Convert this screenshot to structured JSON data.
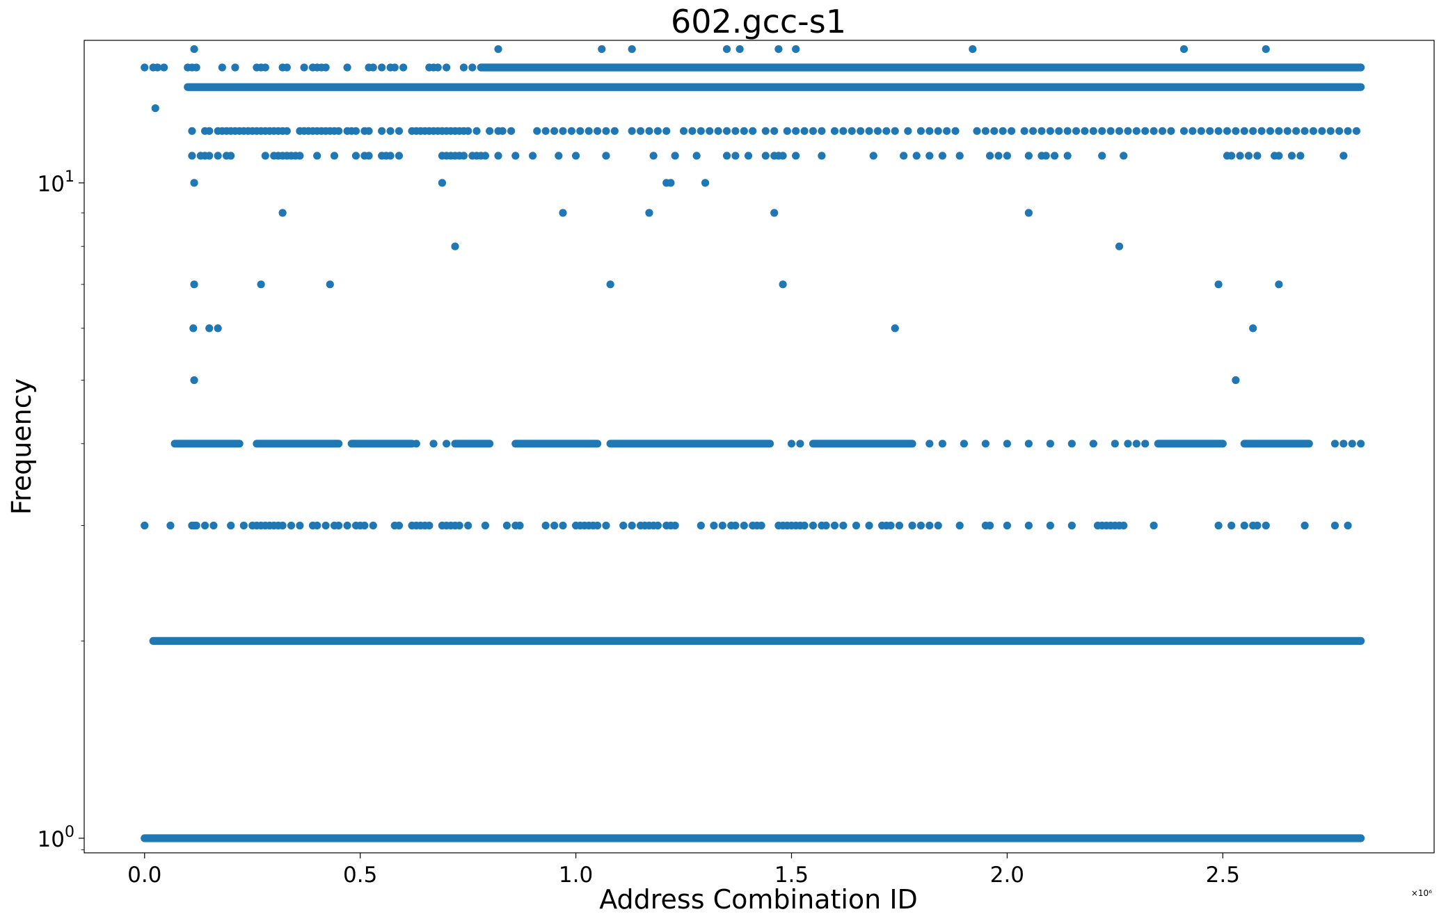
{
  "chart_data": {
    "type": "scatter",
    "title": "602.gcc-s1",
    "xlabel": "Address Combination ID",
    "ylabel": "Frequency",
    "x_offset_label": "×10⁶",
    "xscale": "linear",
    "yscale": "log",
    "xlim": [
      -0.14,
      2.99
    ],
    "ylim": [
      0.95,
      16.5
    ],
    "x_ticks": [
      0.0,
      0.5,
      1.0,
      1.5,
      2.0,
      2.5
    ],
    "x_tick_labels": [
      "0.0",
      "0.5",
      "1.0",
      "1.5",
      "2.0",
      "2.5"
    ],
    "y_ticks": [
      1,
      10
    ],
    "y_tick_labels": [
      {
        "base": "10",
        "exp": "0"
      },
      {
        "base": "10",
        "exp": "1"
      }
    ],
    "marker_color": "#1f77b4",
    "series": [
      {
        "name": "freq_1_dense",
        "y": 1,
        "dense_segments": [
          [
            0.0,
            2.82
          ]
        ]
      },
      {
        "name": "freq_2_dense",
        "y": 2,
        "dense_segments": [
          [
            0.02,
            2.82
          ]
        ]
      },
      {
        "name": "freq_14_dense",
        "y": 14,
        "dense_segments": [
          [
            0.1,
            2.82
          ]
        ]
      },
      {
        "name": "freq_15_dense",
        "y": 15,
        "dense_segments": [
          [
            0.78,
            2.82
          ]
        ],
        "x": [
          0.0,
          0.02,
          0.03,
          0.045,
          0.1,
          0.11,
          0.12,
          0.18,
          0.21,
          0.26,
          0.27,
          0.28,
          0.32,
          0.33,
          0.37,
          0.39,
          0.4,
          0.41,
          0.42,
          0.47,
          0.52,
          0.53,
          0.55,
          0.57,
          0.58,
          0.6,
          0.66,
          0.67,
          0.68,
          0.7,
          0.74,
          0.76
        ]
      },
      {
        "name": "freq_3",
        "y": 3,
        "x": [
          0.0,
          0.06,
          0.11,
          0.115,
          0.12,
          0.14,
          0.16,
          0.2,
          0.23,
          0.25,
          0.26,
          0.27,
          0.28,
          0.29,
          0.3,
          0.31,
          0.32,
          0.34,
          0.36,
          0.39,
          0.4,
          0.42,
          0.44,
          0.45,
          0.47,
          0.49,
          0.5,
          0.51,
          0.53,
          0.58,
          0.59,
          0.62,
          0.63,
          0.64,
          0.65,
          0.66,
          0.69,
          0.7,
          0.71,
          0.72,
          0.73,
          0.75,
          0.79,
          0.84,
          0.86,
          0.87,
          0.93,
          0.95,
          0.97,
          1.0,
          1.01,
          1.02,
          1.03,
          1.04,
          1.05,
          1.07,
          1.11,
          1.13,
          1.15,
          1.16,
          1.17,
          1.18,
          1.19,
          1.21,
          1.22,
          1.23,
          1.29,
          1.32,
          1.34,
          1.36,
          1.37,
          1.39,
          1.41,
          1.42,
          1.43,
          1.47,
          1.48,
          1.49,
          1.5,
          1.51,
          1.52,
          1.53,
          1.55,
          1.57,
          1.58,
          1.6,
          1.62,
          1.65,
          1.68,
          1.71,
          1.72,
          1.73,
          1.75,
          1.78,
          1.8,
          1.82,
          1.84,
          1.89,
          1.95,
          1.96,
          2.0,
          2.05,
          2.1,
          2.15,
          2.21,
          2.22,
          2.23,
          2.24,
          2.25,
          2.26,
          2.27,
          2.34,
          2.49,
          2.52,
          2.55,
          2.57,
          2.58,
          2.6,
          2.69,
          2.76,
          2.79
        ]
      },
      {
        "name": "freq_4_dense",
        "y": 4,
        "dense_segments": [
          [
            0.07,
            0.22
          ],
          [
            0.26,
            0.45
          ],
          [
            0.48,
            0.62
          ],
          [
            0.72,
            0.8
          ],
          [
            0.86,
            1.05
          ],
          [
            1.08,
            1.45
          ],
          [
            1.55,
            1.78
          ],
          [
            2.35,
            2.5
          ],
          [
            2.55,
            2.7
          ]
        ],
        "x": [
          0.63,
          0.67,
          0.7,
          1.5,
          1.52,
          1.82,
          1.85,
          1.9,
          1.95,
          2.0,
          2.05,
          2.1,
          2.15,
          2.2,
          2.25,
          2.28,
          2.3,
          2.32,
          2.76,
          2.78,
          2.8,
          2.82
        ]
      },
      {
        "name": "freq_11",
        "y": 11,
        "x": [
          0.11,
          0.13,
          0.14,
          0.15,
          0.17,
          0.19,
          0.2,
          0.28,
          0.3,
          0.31,
          0.32,
          0.33,
          0.34,
          0.35,
          0.36,
          0.4,
          0.44,
          0.49,
          0.51,
          0.52,
          0.55,
          0.56,
          0.57,
          0.59,
          0.69,
          0.7,
          0.71,
          0.72,
          0.73,
          0.74,
          0.76,
          0.77,
          0.78,
          0.79,
          0.82,
          0.86,
          0.9,
          0.96,
          1.0,
          1.07,
          1.18,
          1.23,
          1.28,
          1.35,
          1.37,
          1.4,
          1.44,
          1.46,
          1.47,
          1.48,
          1.51,
          1.57,
          1.69,
          1.76,
          1.79,
          1.82,
          1.85,
          1.89,
          1.96,
          1.98,
          2.0,
          2.05,
          2.08,
          2.09,
          2.11,
          2.14,
          2.22,
          2.27,
          2.51,
          2.52,
          2.54,
          2.56,
          2.58,
          2.62,
          2.63,
          2.66,
          2.68,
          2.78
        ]
      },
      {
        "name": "freq_12",
        "y": 12,
        "x": [
          0.11,
          0.14,
          0.15,
          0.17,
          0.18,
          0.19,
          0.2,
          0.21,
          0.22,
          0.23,
          0.24,
          0.25,
          0.26,
          0.27,
          0.28,
          0.29,
          0.3,
          0.31,
          0.32,
          0.33,
          0.36,
          0.37,
          0.38,
          0.39,
          0.4,
          0.41,
          0.42,
          0.43,
          0.44,
          0.45,
          0.47,
          0.48,
          0.49,
          0.51,
          0.52,
          0.55,
          0.57,
          0.59,
          0.62,
          0.63,
          0.64,
          0.65,
          0.66,
          0.67,
          0.68,
          0.69,
          0.7,
          0.71,
          0.72,
          0.73,
          0.74,
          0.75,
          0.77,
          0.8,
          0.82,
          0.83,
          0.85,
          0.91,
          0.93,
          0.95,
          0.97,
          0.99,
          1.01,
          1.03,
          1.05,
          1.07,
          1.09,
          1.13,
          1.15,
          1.17,
          1.19,
          1.21,
          1.25,
          1.27,
          1.29,
          1.31,
          1.33,
          1.35,
          1.37,
          1.39,
          1.41,
          1.44,
          1.46,
          1.49,
          1.51,
          1.53,
          1.55,
          1.57,
          1.6,
          1.62,
          1.64,
          1.66,
          1.68,
          1.7,
          1.72,
          1.74,
          1.77,
          1.8,
          1.82,
          1.84,
          1.86,
          1.88,
          1.93,
          1.95,
          1.97,
          1.99,
          2.01,
          2.04,
          2.06,
          2.08,
          2.1,
          2.12,
          2.14,
          2.16,
          2.18,
          2.2,
          2.22,
          2.24,
          2.26,
          2.28,
          2.3,
          2.32,
          2.34,
          2.36,
          2.38,
          2.41,
          2.43,
          2.45,
          2.47,
          2.49,
          2.51,
          2.53,
          2.55,
          2.57,
          2.59,
          2.61,
          2.63,
          2.65,
          2.67,
          2.69,
          2.71,
          2.73,
          2.75,
          2.77,
          2.79,
          2.81
        ]
      },
      {
        "name": "freq_16",
        "y": 16,
        "x": [
          0.115,
          0.82,
          1.06,
          1.13,
          1.35,
          1.38,
          1.47,
          1.51,
          1.92,
          2.41,
          2.6
        ]
      },
      {
        "name": "freq_10",
        "y": 10,
        "x": [
          0.115,
          0.69,
          1.21,
          1.22,
          1.3
        ]
      },
      {
        "name": "freq_9",
        "y": 9,
        "x": [
          0.32,
          0.97,
          1.17,
          1.46,
          2.05
        ]
      },
      {
        "name": "freq_8",
        "y": 8,
        "x": [
          0.72,
          2.26
        ]
      },
      {
        "name": "freq_7",
        "y": 7,
        "x": [
          0.115,
          0.27,
          0.43,
          1.08,
          1.48,
          2.49,
          2.63
        ]
      },
      {
        "name": "freq_6",
        "y": 6,
        "x": [
          0.113,
          0.15,
          0.17,
          1.74,
          2.57
        ]
      },
      {
        "name": "freq_5",
        "y": 5,
        "x": [
          0.115,
          2.53
        ]
      },
      {
        "name": "freq_13",
        "y": 13,
        "x": [
          0.025
        ]
      }
    ]
  }
}
